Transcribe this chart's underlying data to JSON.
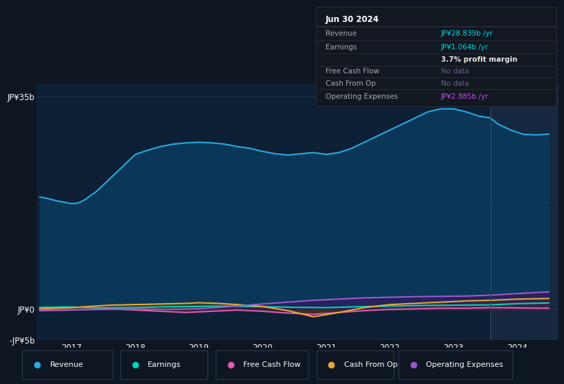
{
  "bg_color": "#0e1621",
  "plot_bg_color": "#0d2035",
  "forecast_bg_color": "#162840",
  "grid_color": "#1e3a50",
  "ylim": [
    -5000000000.0,
    37000000000.0
  ],
  "xlim_left": 2016.45,
  "xlim_right": 2024.65,
  "forecast_start_x": 2023.58,
  "legend_items": [
    {
      "label": "Revenue",
      "color": "#29aae1"
    },
    {
      "label": "Earnings",
      "color": "#00d4b4"
    },
    {
      "label": "Free Cash Flow",
      "color": "#e05aad"
    },
    {
      "label": "Cash From Op",
      "color": "#e8a838"
    },
    {
      "label": "Operating Expenses",
      "color": "#9b59d0"
    }
  ],
  "revenue_x": [
    2016.5,
    2016.6,
    2016.75,
    2016.9,
    2017.0,
    2017.1,
    2017.2,
    2017.4,
    2017.6,
    2017.8,
    2017.9,
    2018.0,
    2018.2,
    2018.4,
    2018.6,
    2018.8,
    2019.0,
    2019.2,
    2019.4,
    2019.5,
    2019.6,
    2019.8,
    2020.0,
    2020.2,
    2020.4,
    2020.5,
    2020.6,
    2020.8,
    2021.0,
    2021.2,
    2021.4,
    2021.6,
    2021.8,
    2022.0,
    2022.2,
    2022.4,
    2022.6,
    2022.8,
    2023.0,
    2023.2,
    2023.4,
    2023.58,
    2023.7,
    2023.9,
    2024.1,
    2024.3,
    2024.5
  ],
  "revenue_y": [
    18500000000.0,
    18300000000.0,
    17900000000.0,
    17600000000.0,
    17400000000.0,
    17500000000.0,
    18000000000.0,
    19500000000.0,
    21500000000.0,
    23500000000.0,
    24500000000.0,
    25500000000.0,
    26200000000.0,
    26800000000.0,
    27200000000.0,
    27400000000.0,
    27500000000.0,
    27400000000.0,
    27200000000.0,
    27000000000.0,
    26800000000.0,
    26500000000.0,
    26000000000.0,
    25600000000.0,
    25400000000.0,
    25500000000.0,
    25600000000.0,
    25800000000.0,
    25500000000.0,
    25800000000.0,
    26500000000.0,
    27500000000.0,
    28500000000.0,
    29500000000.0,
    30500000000.0,
    31500000000.0,
    32500000000.0,
    33000000000.0,
    33000000000.0,
    32500000000.0,
    31800000000.0,
    31500000000.0,
    30500000000.0,
    29500000000.0,
    28800000000.0,
    28700000000.0,
    28839000000.0
  ],
  "earnings_x": [
    2016.5,
    2017.0,
    2017.5,
    2018.0,
    2018.5,
    2019.0,
    2019.5,
    2020.0,
    2020.5,
    2021.0,
    2021.5,
    2022.0,
    2022.5,
    2023.0,
    2023.58,
    2024.0,
    2024.5
  ],
  "earnings_y": [
    350000000.0,
    400000000.0,
    250000000.0,
    300000000.0,
    450000000.0,
    500000000.0,
    550000000.0,
    450000000.0,
    350000000.0,
    300000000.0,
    450000000.0,
    550000000.0,
    650000000.0,
    700000000.0,
    750000000.0,
    950000000.0,
    1064000000.0
  ],
  "fcf_x": [
    2016.5,
    2017.0,
    2017.3,
    2017.6,
    2018.0,
    2018.4,
    2018.8,
    2019.2,
    2019.6,
    2020.0,
    2020.4,
    2020.8,
    2021.2,
    2021.6,
    2022.0,
    2022.4,
    2022.8,
    2023.2,
    2023.58,
    2024.0,
    2024.5
  ],
  "fcf_y": [
    -200000000.0,
    -100000000.0,
    0.0,
    100000000.0,
    -100000000.0,
    -300000000.0,
    -500000000.0,
    -300000000.0,
    -100000000.0,
    -300000000.0,
    -600000000.0,
    -800000000.0,
    -500000000.0,
    -200000000.0,
    0.0,
    100000000.0,
    200000000.0,
    200000000.0,
    300000000.0,
    250000000.0,
    200000000.0
  ],
  "cfo_x": [
    2016.5,
    2017.0,
    2017.3,
    2017.6,
    2018.0,
    2018.4,
    2018.8,
    2019.0,
    2019.3,
    2019.6,
    2020.0,
    2020.4,
    2020.8,
    2021.2,
    2021.6,
    2022.0,
    2022.4,
    2022.8,
    2023.2,
    2023.58,
    2024.0,
    2024.5
  ],
  "cfo_y": [
    100000000.0,
    300000000.0,
    500000000.0,
    700000000.0,
    800000000.0,
    900000000.0,
    1000000000.0,
    1100000000.0,
    1000000000.0,
    800000000.0,
    500000000.0,
    -200000000.0,
    -1200000000.0,
    -500000000.0,
    300000000.0,
    800000000.0,
    1000000000.0,
    1200000000.0,
    1400000000.0,
    1500000000.0,
    1700000000.0,
    1800000000.0
  ],
  "ope_x": [
    2016.5,
    2017.0,
    2017.5,
    2018.0,
    2018.5,
    2019.0,
    2019.5,
    2020.0,
    2020.4,
    2020.8,
    2021.2,
    2021.6,
    2022.0,
    2022.4,
    2022.8,
    2023.2,
    2023.58,
    2024.0,
    2024.5
  ],
  "ope_y": [
    -100000000.0,
    -50000000.0,
    0.0,
    50000000.0,
    0.0,
    100000000.0,
    500000000.0,
    900000000.0,
    1200000000.0,
    1500000000.0,
    1700000000.0,
    1900000000.0,
    2000000000.0,
    2100000000.0,
    2150000000.0,
    2200000000.0,
    2350000000.0,
    2600000000.0,
    2885000000.0
  ]
}
